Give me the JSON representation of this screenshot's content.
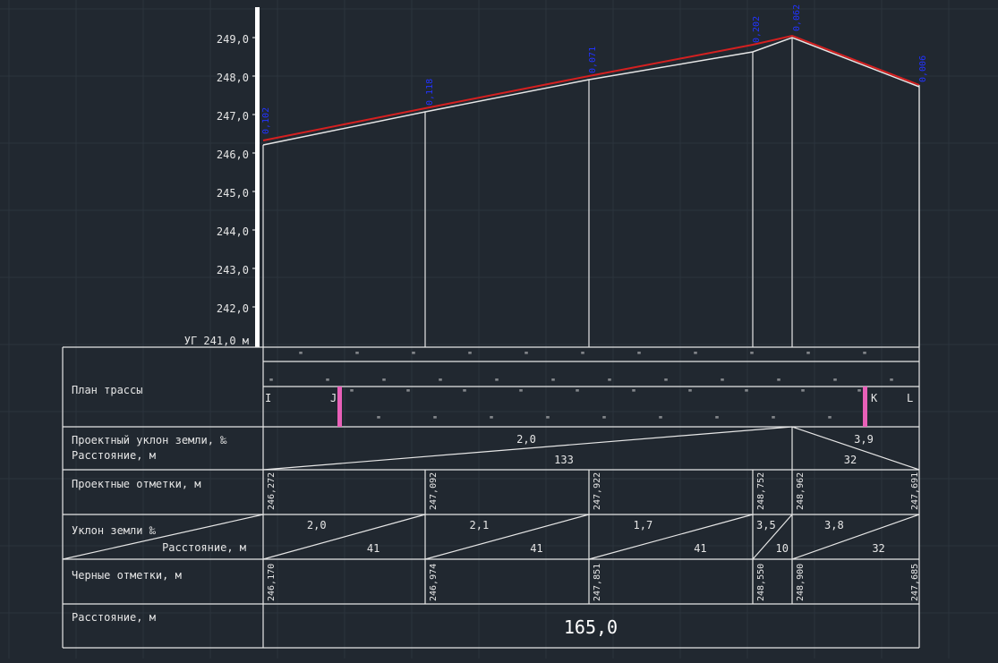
{
  "canvas": {
    "background": "#212830",
    "grid_color": "#2c343d",
    "line_color": "#e6e6e6",
    "design_line_color": "#d42020",
    "label_color": "#2233ff",
    "marker_color": "#e860b8"
  },
  "axis": {
    "tick_labels": [
      "249,0",
      "248,0",
      "247,0",
      "246,0",
      "245,0",
      "244,0",
      "243,0",
      "242,0"
    ],
    "datum_label": "УГ 241,0 м"
  },
  "top_labels": [
    "0,102",
    "0,118",
    "0,071",
    "0,202",
    "0,062",
    "0,006"
  ],
  "rows": {
    "plan": "План трассы",
    "design_slope": "Проектный уклон земли, ‰",
    "design_distance": "Расстояние, м",
    "design_elev": "Проектные отметки, м",
    "ground_slope": "Уклон земли ‰",
    "ground_distance": "Расстояние, м",
    "black_elev": "Черные отметки, м",
    "total_distance": "Расстояние, м"
  },
  "plan_letters": [
    "I",
    "J",
    "K",
    "L"
  ],
  "design_slope_values": [
    "2,0",
    "3,9"
  ],
  "design_distances": [
    "133",
    "32"
  ],
  "design_elevations": [
    "246,272",
    "247,092",
    "247,922",
    "248,752",
    "248,962",
    "247,691"
  ],
  "ground_segments": [
    {
      "slope": "2,0",
      "distance": "41"
    },
    {
      "slope": "2,1",
      "distance": "41"
    },
    {
      "slope": "1,7",
      "distance": "41"
    },
    {
      "slope": "3,5",
      "distance": "10"
    },
    {
      "slope": "3,8",
      "distance": "32"
    }
  ],
  "black_elevations": [
    "246,170",
    "246,974",
    "247,851",
    "248,550",
    "248,900",
    "247,685"
  ],
  "total_distance_value": "165,0"
}
